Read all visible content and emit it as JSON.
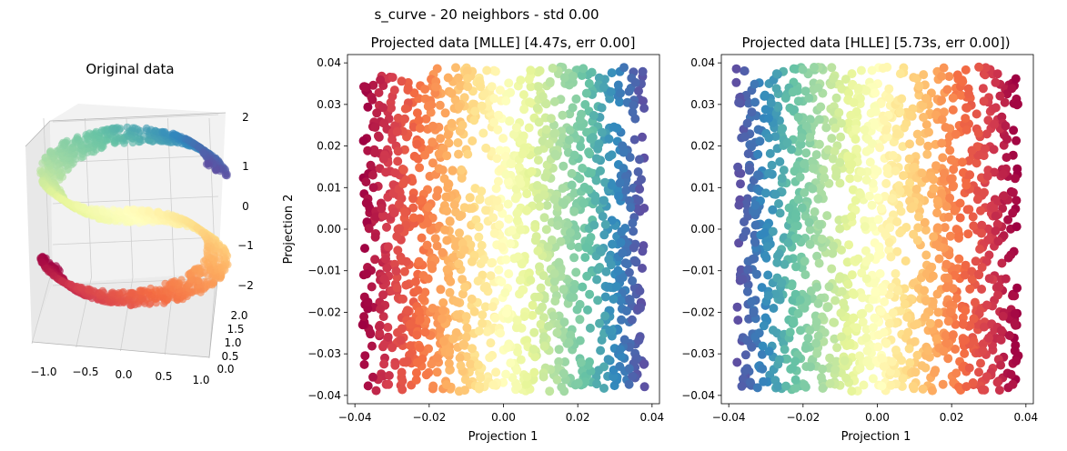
{
  "suptitle": "s_curve - 20 neighbors - std 0.00",
  "chart_data": [
    {
      "type": "scatter3d",
      "title": "Original data",
      "x_ticks": [
        "−1.0",
        "−0.5",
        "0.0",
        "0.5",
        "1.0"
      ],
      "y_ticks": [
        "0.0",
        "0.5",
        "1.0",
        "1.5",
        "2.0"
      ],
      "z_ticks": [
        "2",
        "1",
        "0",
        "−1",
        "−2"
      ],
      "xlim": [
        -1,
        1
      ],
      "ylim": [
        0,
        2
      ],
      "zlim": [
        -2,
        2
      ],
      "colormap": "Spectral",
      "n_points": 1500
    },
    {
      "type": "scatter",
      "title": "Projected data [MLLE] [4.47s, err 0.00]",
      "xlabel": "Projection 1",
      "ylabel": "Projection 2",
      "xlim": [
        -0.042,
        0.042
      ],
      "ylim": [
        -0.042,
        0.042
      ],
      "x_ticks": [
        "−0.04",
        "−0.02",
        "0.00",
        "0.02",
        "0.04"
      ],
      "y_ticks": [
        "0.04",
        "0.03",
        "0.02",
        "0.01",
        "0.00",
        "−0.01",
        "−0.02",
        "−0.03",
        "−0.04"
      ],
      "color_direction": "red at left, violet at right",
      "colormap": "Spectral",
      "n_points": 1500
    },
    {
      "type": "scatter",
      "title": "Projected data [HLLE] [5.73s, err 0.00])",
      "xlabel": "Projection 1",
      "ylabel": "",
      "xlim": [
        -0.042,
        0.042
      ],
      "ylim": [
        -0.042,
        0.042
      ],
      "x_ticks": [
        "−0.04",
        "−0.02",
        "0.00",
        "0.02",
        "0.04"
      ],
      "y_ticks": [
        "0.04",
        "0.03",
        "0.02",
        "0.01",
        "0.00",
        "−0.01",
        "−0.02",
        "−0.03",
        "−0.04"
      ],
      "color_direction": "violet at left, red at right",
      "colormap": "Spectral",
      "n_points": 1500
    }
  ]
}
